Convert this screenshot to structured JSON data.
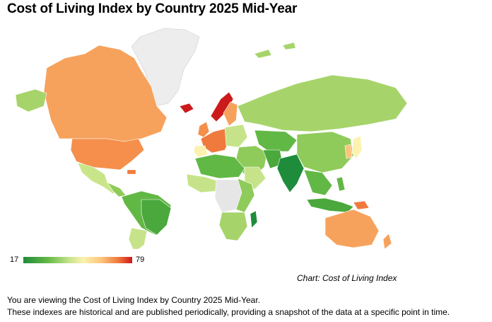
{
  "title": "Cost of Living Index by Country 2025 Mid-Year",
  "legend": {
    "min": "17",
    "max": "79"
  },
  "credit": "Chart: Cost of Living Index",
  "footer": {
    "line1": "You are viewing the Cost of Living Index by Country 2025 Mid-Year.",
    "line2": "These indexes are historical and are published periodically, providing a snapshot of the data at a specific point in time."
  },
  "colors": {
    "low": "#1e8c3a",
    "mid": "#fbf2b0",
    "high": "#cc1a1a",
    "no_data": "#e8e8e8",
    "orange": "#f7a25c",
    "light_orange": "#fcc37a",
    "light_green": "#a6d46a",
    "green": "#62b845"
  }
}
